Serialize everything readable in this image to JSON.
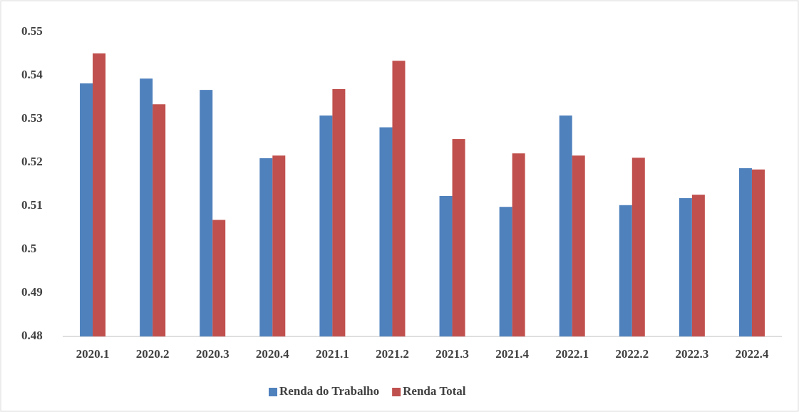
{
  "chart_data": {
    "type": "bar",
    "categories": [
      "2020.1",
      "2020.2",
      "2020.3",
      "2020.4",
      "2021.1",
      "2021.2",
      "2021.3",
      "2021.4",
      "2022.1",
      "2022.2",
      "2022.3",
      "2022.4"
    ],
    "series": [
      {
        "name": "Renda do Trabalho",
        "color": "#4f81bd",
        "values": [
          0.5382,
          0.5393,
          0.5367,
          0.521,
          0.5308,
          0.5281,
          0.5123,
          0.5098,
          0.5308,
          0.5102,
          0.5118,
          0.5187
        ]
      },
      {
        "name": "Renda Total",
        "color": "#c0504d",
        "values": [
          0.5451,
          0.5334,
          0.5068,
          0.5216,
          0.5369,
          0.5434,
          0.5254,
          0.5221,
          0.5216,
          0.5211,
          0.5126,
          0.5184
        ]
      }
    ],
    "ylim": [
      0.48,
      0.55
    ],
    "yticks": [
      0.48,
      0.49,
      0.5,
      0.51,
      0.52,
      0.53,
      0.54,
      0.55
    ],
    "grid": false,
    "legend": "bottom"
  }
}
